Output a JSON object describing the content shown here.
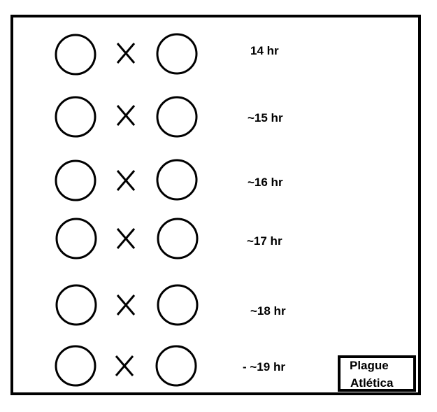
{
  "rows": [
    {
      "time_label": "14 hr"
    },
    {
      "time_label": "~15 hr"
    },
    {
      "time_label": "~16 hr"
    },
    {
      "time_label": "~17 hr"
    },
    {
      "time_label": "~18 hr"
    },
    {
      "time_label": "- ~19 hr"
    }
  ],
  "badge": {
    "line1": "Plague",
    "line2": "Atlética"
  },
  "colors": {
    "ink": "#000000",
    "background": "#ffffff"
  }
}
